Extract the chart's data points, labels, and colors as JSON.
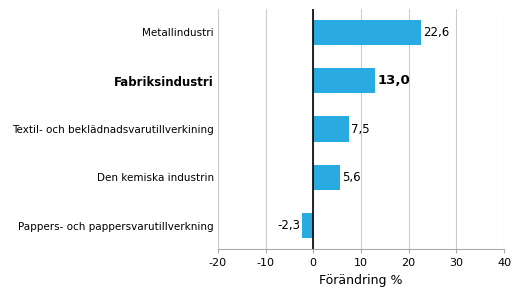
{
  "categories": [
    "Pappers- och pappersvarutillverkning",
    "Den kemiska industrin",
    "Textil- och beklädnadsvarutillverkining",
    "Fabriksindustri",
    "Metallindustri"
  ],
  "values": [
    -2.3,
    5.6,
    7.5,
    13.0,
    22.6
  ],
  "bold_indices": [
    3
  ],
  "bar_color": "#29abe2",
  "xlabel": "Förändring %",
  "xlim": [
    -20,
    40
  ],
  "xticks": [
    -20,
    -10,
    0,
    10,
    20,
    30,
    40
  ],
  "grid_color": "#cccccc",
  "background_color": "#ffffff",
  "label_fontsize": 7.5,
  "value_fontsize": 8.5,
  "xlabel_fontsize": 9
}
